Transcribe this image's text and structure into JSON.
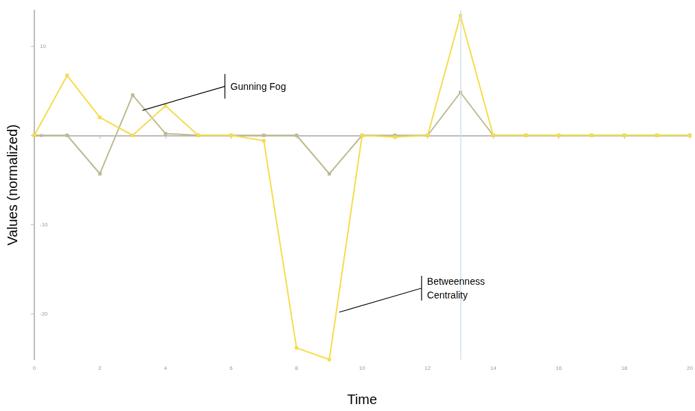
{
  "chart_data": {
    "type": "line",
    "xlabel": "Time",
    "ylabel": "Values (normalized)",
    "x": [
      0,
      1,
      2,
      3,
      4,
      5,
      6,
      7,
      8,
      9,
      10,
      11,
      12,
      13,
      14,
      15,
      16,
      17,
      18,
      19,
      20
    ],
    "series": [
      {
        "color": "#bdb990",
        "values": [
          0,
          0,
          -4.3,
          4.5,
          0.2,
          0,
          0,
          0,
          0,
          -4.3,
          0,
          0,
          0,
          4.8,
          0,
          0,
          0,
          0,
          0,
          0,
          0
        ]
      },
      {
        "color": "#f5dc4a",
        "values": [
          0,
          6.7,
          2,
          0,
          3.3,
          0,
          0,
          -0.6,
          -23.8,
          -25.1,
          0,
          -0.2,
          0,
          13.4,
          0,
          0,
          0,
          0,
          0,
          0,
          0
        ]
      }
    ],
    "xlim": [
      0,
      20
    ],
    "xticks": [
      0,
      2,
      4,
      6,
      8,
      10,
      12,
      14,
      16,
      18,
      20
    ],
    "ylim": [
      -25.1,
      14
    ],
    "yticks": [
      -20,
      -10,
      0,
      10
    ],
    "ref_lines": [
      {
        "axis": "x",
        "value": 13,
        "color": "#cfe0ef"
      }
    ],
    "annotations": [
      {
        "text": "Gunning Fog",
        "x": 3.3,
        "y": 2.8
      },
      {
        "text": "Betweenness\nCentrality",
        "x": 9.3,
        "y": -19.8
      }
    ],
    "marker": "square",
    "line_style": "solid"
  }
}
